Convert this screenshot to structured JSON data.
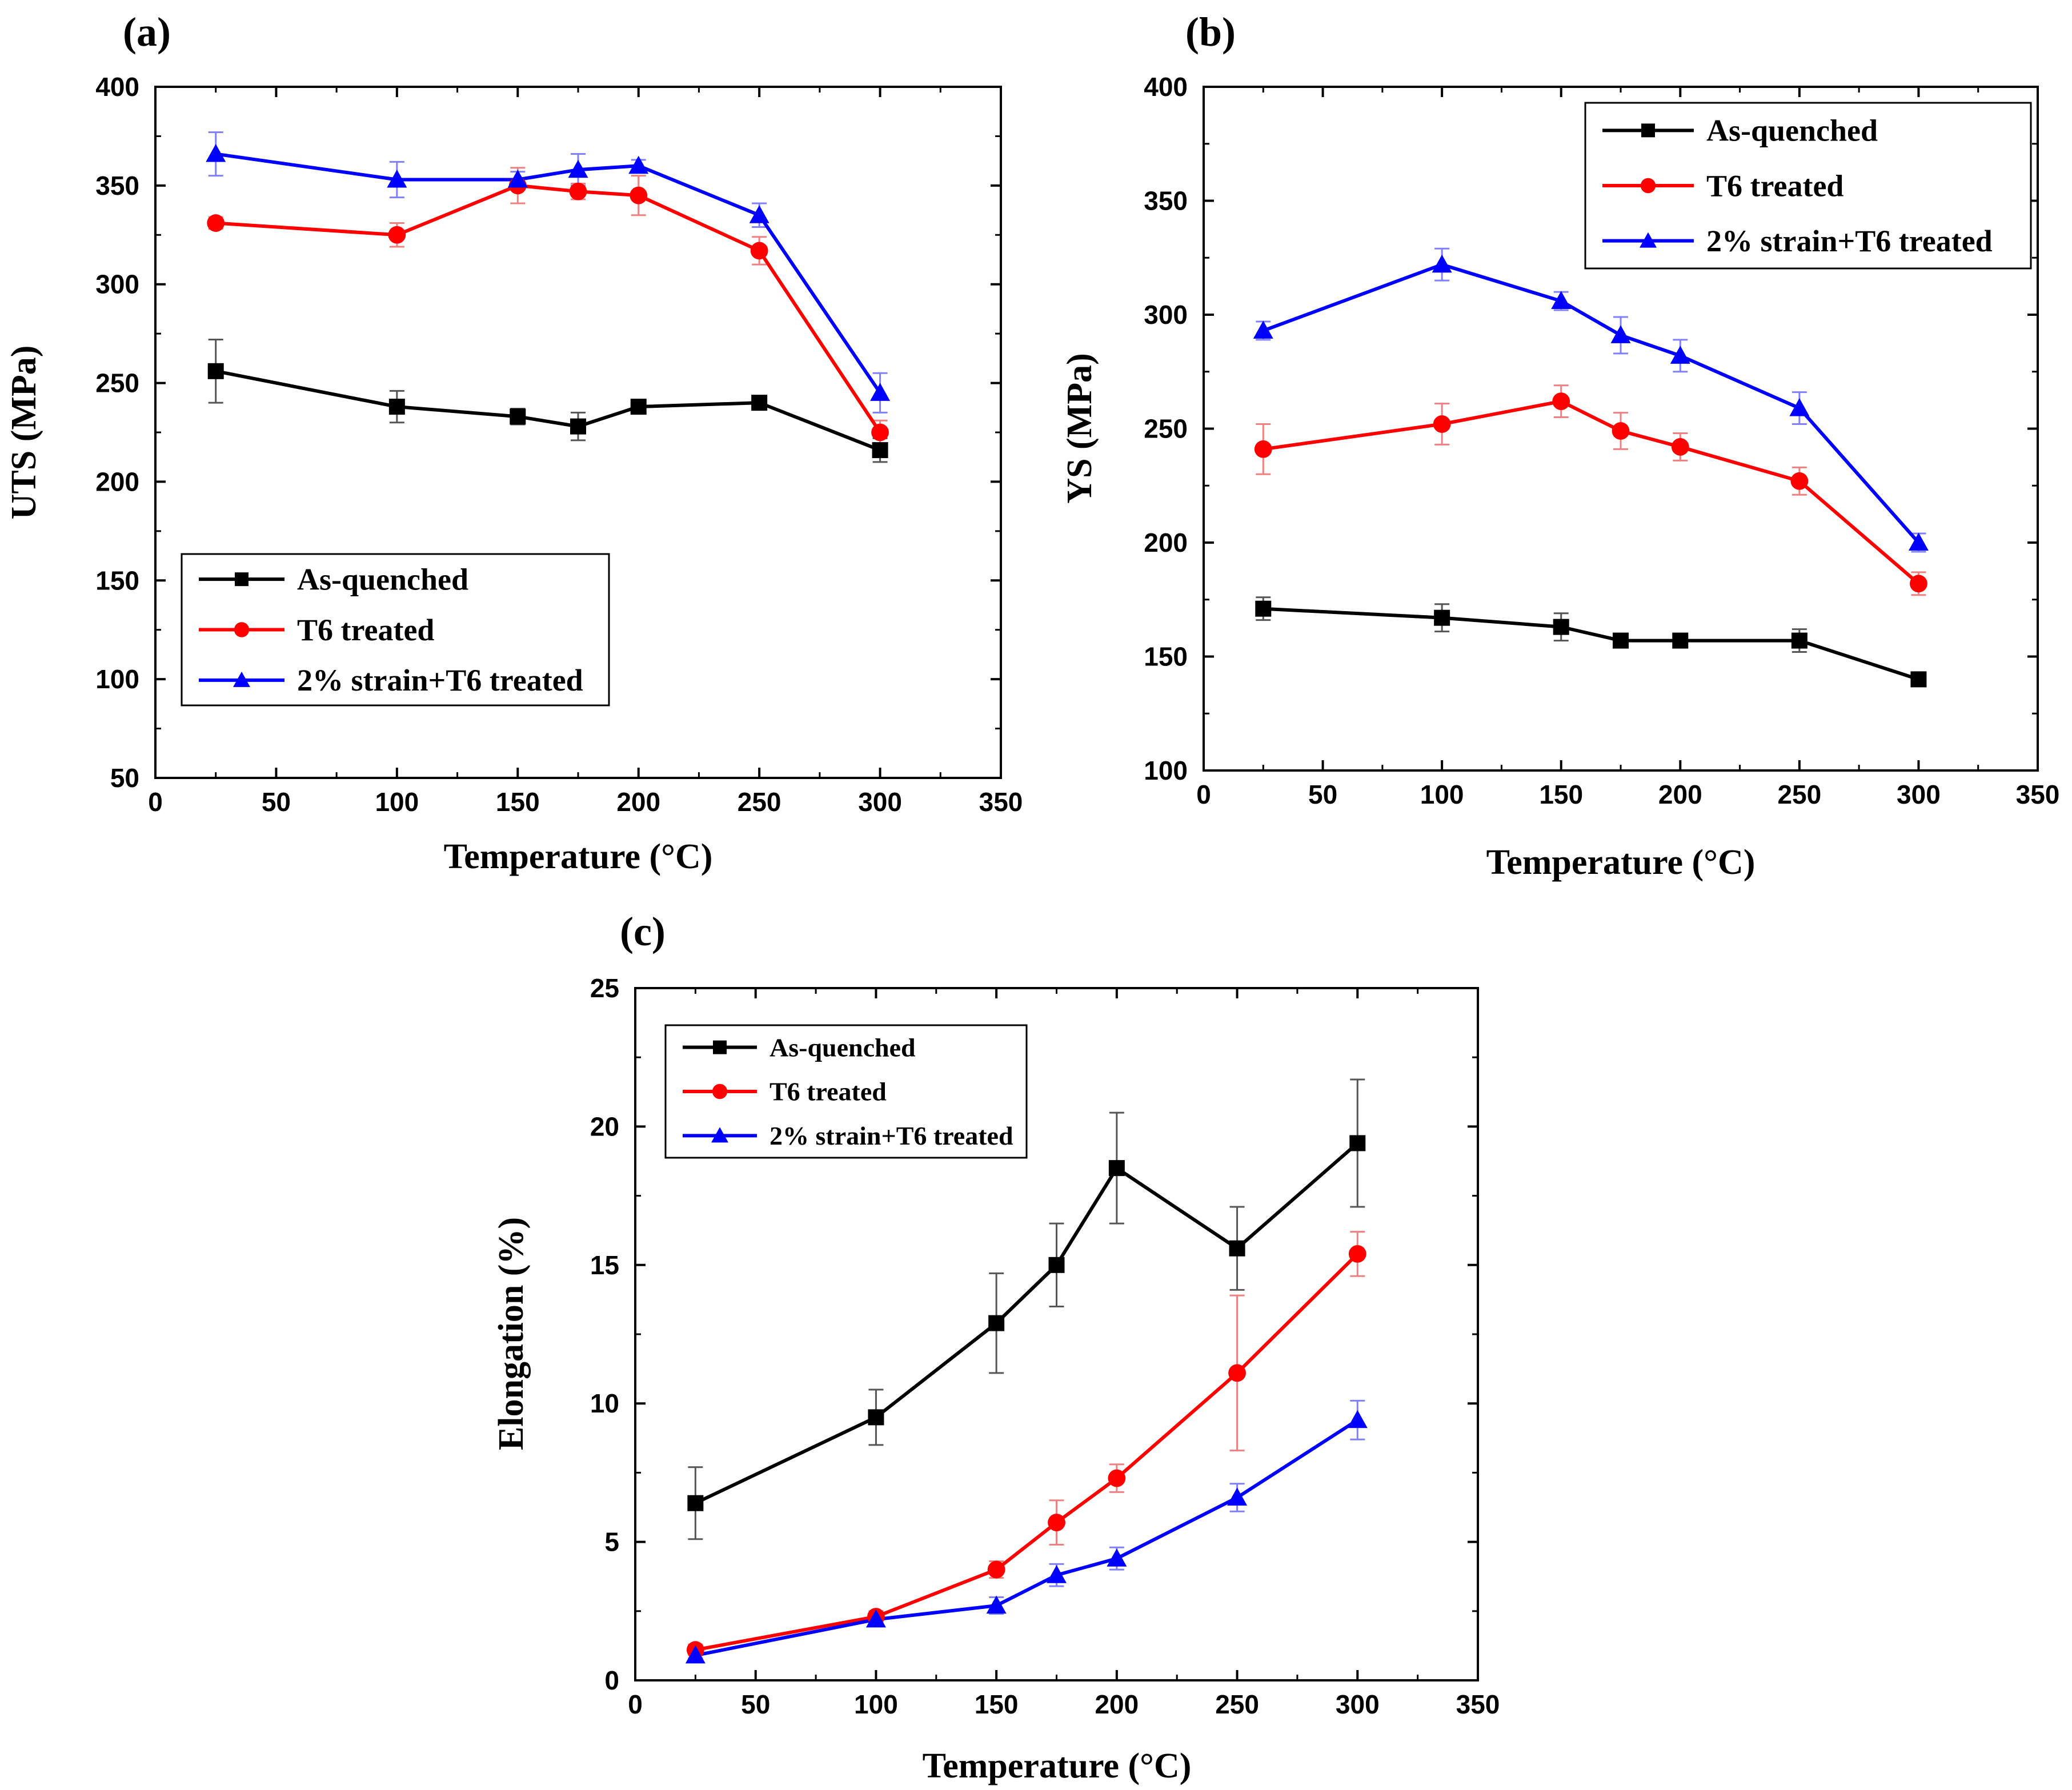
{
  "chart_data": [
    {
      "type": "line",
      "panel": "(a)",
      "xlabel": "Temperature (°C)",
      "ylabel": "UTS (MPa)",
      "xlim": [
        0,
        350
      ],
      "ylim": [
        50,
        400
      ],
      "xticks": [
        0,
        50,
        100,
        150,
        200,
        250,
        300,
        350
      ],
      "yticks": [
        50,
        100,
        150,
        200,
        250,
        300,
        350,
        400
      ],
      "legend_position": "bottom-left",
      "series": [
        {
          "name": "As-quenched",
          "color": "#000000",
          "marker": "square",
          "x": [
            25,
            100,
            150,
            175,
            200,
            250,
            300
          ],
          "y": [
            256,
            238,
            233,
            228,
            238,
            240,
            216
          ],
          "err": [
            16,
            8,
            4,
            7,
            3,
            3,
            6
          ]
        },
        {
          "name": "T6 treated",
          "color": "#ff0000",
          "marker": "circle",
          "x": [
            25,
            100,
            150,
            175,
            200,
            250,
            300
          ],
          "y": [
            331,
            325,
            350,
            347,
            345,
            317,
            225
          ],
          "err": [
            3,
            6,
            9,
            4,
            10,
            7,
            6
          ]
        },
        {
          "name": "2% strain+T6 treated",
          "color": "#0000ff",
          "marker": "triangle",
          "x": [
            25,
            100,
            150,
            175,
            200,
            250,
            300
          ],
          "y": [
            366,
            353,
            353,
            358,
            360,
            335,
            245
          ],
          "err": [
            11,
            9,
            4,
            8,
            3,
            6,
            10
          ]
        }
      ]
    },
    {
      "type": "line",
      "panel": "(b)",
      "xlabel": "Temperature (°C)",
      "ylabel": "YS (MPa)",
      "xlim": [
        0,
        350
      ],
      "ylim": [
        100,
        400
      ],
      "xticks": [
        0,
        50,
        100,
        150,
        200,
        250,
        300,
        350
      ],
      "yticks": [
        100,
        150,
        200,
        250,
        300,
        350,
        400
      ],
      "legend_position": "top-right",
      "series": [
        {
          "name": "As-quenched",
          "color": "#000000",
          "marker": "square",
          "x": [
            25,
            100,
            150,
            175,
            200,
            250,
            300
          ],
          "y": [
            171,
            167,
            163,
            157,
            157,
            157,
            140
          ],
          "err": [
            5,
            6,
            6,
            2,
            3,
            5,
            3
          ]
        },
        {
          "name": "T6 treated",
          "color": "#ff0000",
          "marker": "circle",
          "x": [
            25,
            100,
            150,
            175,
            200,
            250,
            300
          ],
          "y": [
            241,
            252,
            262,
            249,
            242,
            227,
            182
          ],
          "err": [
            11,
            9,
            7,
            8,
            6,
            6,
            5
          ]
        },
        {
          "name": "2% strain+T6 treated",
          "color": "#0000ff",
          "marker": "triangle",
          "x": [
            25,
            100,
            150,
            175,
            200,
            250,
            300
          ],
          "y": [
            293,
            322,
            306,
            291,
            282,
            259,
            200
          ],
          "err": [
            4,
            7,
            4,
            8,
            7,
            7,
            4
          ]
        }
      ]
    },
    {
      "type": "line",
      "panel": "(c)",
      "xlabel": "Temperature (°C)",
      "ylabel": "Elongation (%)",
      "xlim": [
        0,
        350
      ],
      "ylim": [
        0,
        25
      ],
      "xticks": [
        0,
        50,
        100,
        150,
        200,
        250,
        300,
        350
      ],
      "yticks": [
        0,
        5,
        10,
        15,
        20,
        25
      ],
      "legend_position": "top-left",
      "series": [
        {
          "name": "As-quenched",
          "color": "#000000",
          "marker": "square",
          "x": [
            25,
            100,
            150,
            175,
            200,
            250,
            300
          ],
          "y": [
            6.4,
            9.5,
            12.9,
            15.0,
            18.5,
            15.6,
            19.4
          ],
          "err": [
            1.3,
            1.0,
            1.8,
            1.5,
            2.0,
            1.5,
            2.3
          ]
        },
        {
          "name": "T6 treated",
          "color": "#ff0000",
          "marker": "circle",
          "x": [
            25,
            100,
            150,
            175,
            200,
            250,
            300
          ],
          "y": [
            1.1,
            2.3,
            4.0,
            5.7,
            7.3,
            11.1,
            15.4
          ],
          "err": [
            0.2,
            0.2,
            0.3,
            0.8,
            0.5,
            2.8,
            0.8
          ]
        },
        {
          "name": "2% strain+T6 treated",
          "color": "#0000ff",
          "marker": "triangle",
          "x": [
            25,
            100,
            150,
            175,
            200,
            250,
            300
          ],
          "y": [
            0.9,
            2.2,
            2.7,
            3.8,
            4.4,
            6.6,
            9.4
          ],
          "err": [
            0.1,
            0.2,
            0.3,
            0.4,
            0.4,
            0.5,
            0.7
          ]
        }
      ]
    }
  ]
}
